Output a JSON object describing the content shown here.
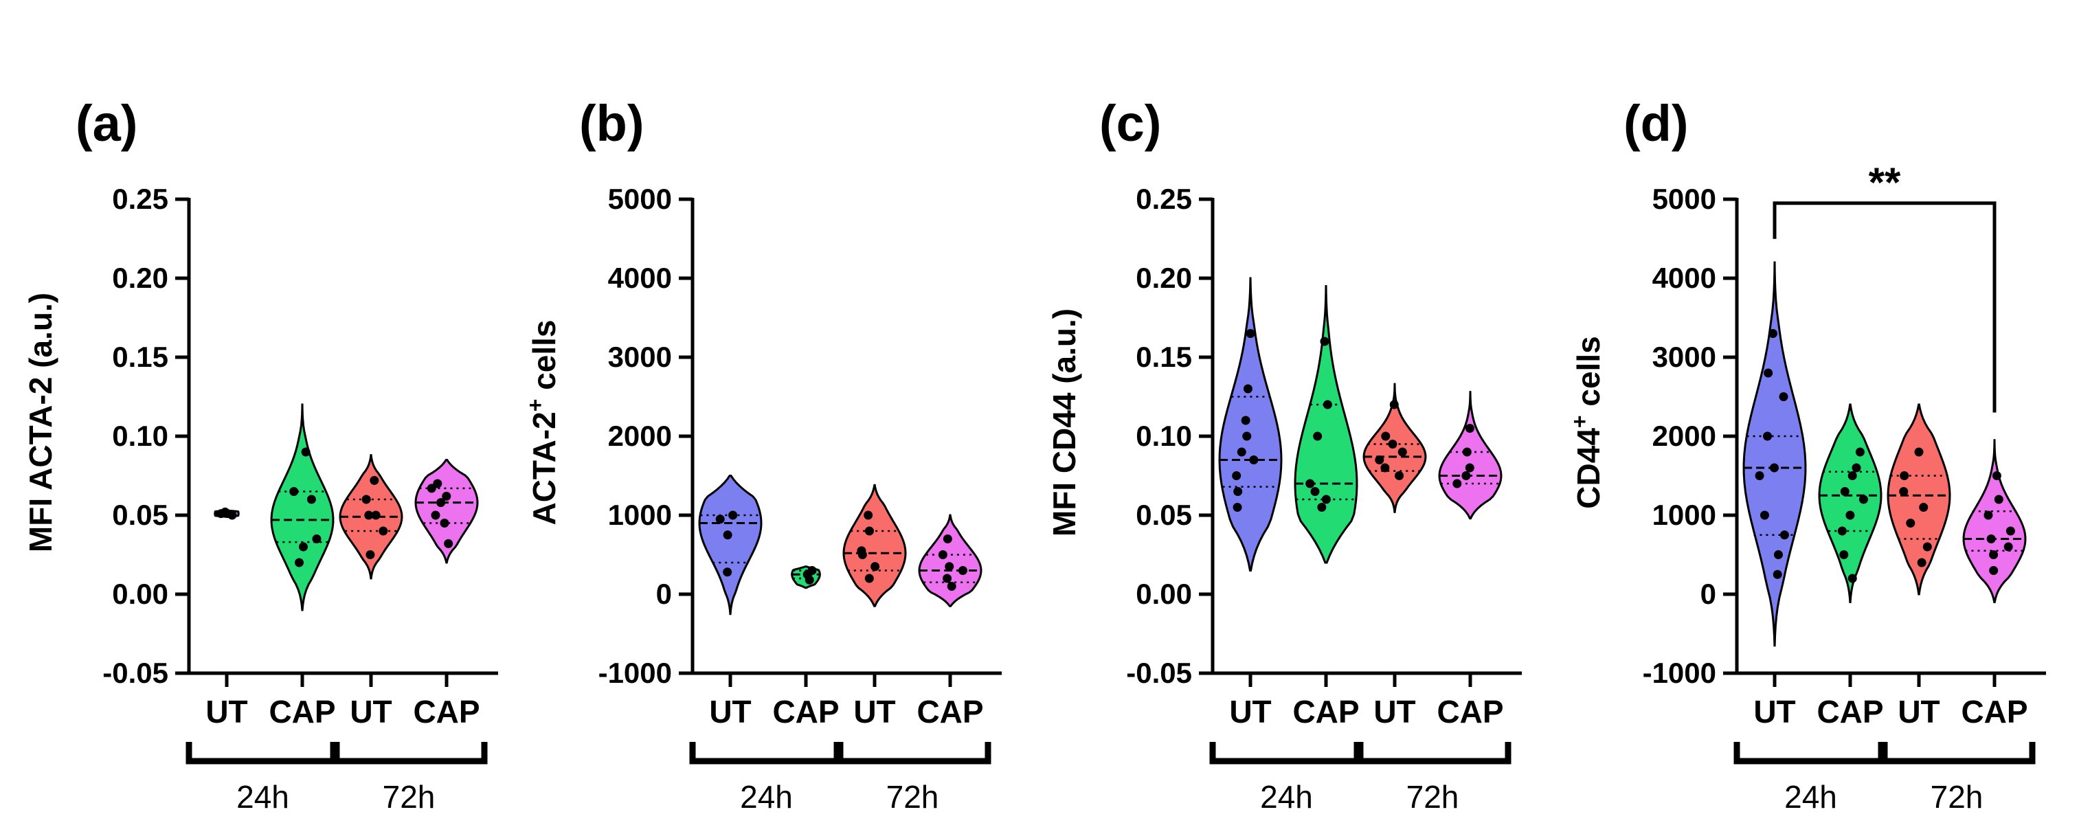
{
  "figure": {
    "panel_colors": [
      "#7b7fef",
      "#22dc73",
      "#f86d69",
      "#ec72ef"
    ]
  },
  "chart_data": [
    {
      "type": "violin",
      "panel": "(a)",
      "ylabel": "MFI ACTA-2 (a.u.)",
      "ylabel_sup": "",
      "ylabel_tail": "",
      "ylim": [
        -0.05,
        0.25
      ],
      "yticks": [
        -0.05,
        0.0,
        0.05,
        0.1,
        0.15,
        0.2,
        0.25
      ],
      "ytick_labels": [
        "-0.05",
        "0.00",
        "0.05",
        "0.10",
        "0.15",
        "0.20",
        "0.25"
      ],
      "categories": [
        "UT",
        "CAP",
        "UT",
        "CAP"
      ],
      "time_groups": [
        "24h",
        "72h"
      ],
      "series": [
        {
          "category": "UT",
          "group": "24h",
          "median": 0.051,
          "q1": 0.05,
          "q3": 0.052,
          "min": 0.049,
          "max": 0.053,
          "points": [
            0.05,
            0.051,
            0.051,
            0.052
          ]
        },
        {
          "category": "CAP",
          "group": "24h",
          "median": 0.047,
          "q1": 0.033,
          "q3": 0.065,
          "min": -0.01,
          "max": 0.12,
          "points": [
            0.02,
            0.03,
            0.035,
            0.06,
            0.065,
            0.09
          ]
        },
        {
          "category": "UT",
          "group": "72h",
          "median": 0.049,
          "q1": 0.04,
          "q3": 0.06,
          "min": 0.01,
          "max": 0.088,
          "points": [
            0.025,
            0.04,
            0.05,
            0.05,
            0.06,
            0.072
          ]
        },
        {
          "category": "CAP",
          "group": "72h",
          "median": 0.058,
          "q1": 0.045,
          "q3": 0.067,
          "min": 0.02,
          "max": 0.085,
          "points": [
            0.032,
            0.045,
            0.05,
            0.058,
            0.062,
            0.067,
            0.07
          ]
        }
      ],
      "significance": null
    },
    {
      "type": "violin",
      "panel": "(b)",
      "ylabel": "ACTA-2",
      "ylabel_sup": "+",
      "ylabel_tail": " cells",
      "ylim": [
        -1000,
        5000
      ],
      "yticks": [
        -1000,
        0,
        1000,
        2000,
        3000,
        4000,
        5000
      ],
      "ytick_labels": [
        "-1000",
        "0",
        "1000",
        "2000",
        "3000",
        "4000",
        "5000"
      ],
      "categories": [
        "UT",
        "CAP",
        "UT",
        "CAP"
      ],
      "time_groups": [
        "24h",
        "72h"
      ],
      "series": [
        {
          "category": "UT",
          "group": "24h",
          "median": 900,
          "q1": 400,
          "q3": 1000,
          "min": -250,
          "max": 1500,
          "points": [
            280,
            750,
            950,
            1000
          ]
        },
        {
          "category": "CAP",
          "group": "24h",
          "median": 250,
          "q1": 200,
          "q3": 300,
          "min": 80,
          "max": 350,
          "points": [
            180,
            250,
            300
          ]
        },
        {
          "category": "UT",
          "group": "72h",
          "median": 520,
          "q1": 300,
          "q3": 800,
          "min": -150,
          "max": 1380,
          "points": [
            200,
            350,
            500,
            550,
            800,
            1000
          ]
        },
        {
          "category": "CAP",
          "group": "72h",
          "median": 300,
          "q1": 150,
          "q3": 500,
          "min": -150,
          "max": 1000,
          "points": [
            100,
            200,
            300,
            350,
            500,
            700
          ]
        }
      ],
      "significance": null
    },
    {
      "type": "violin",
      "panel": "(c)",
      "ylabel": "MFI CD44 (a.u.)",
      "ylabel_sup": "",
      "ylabel_tail": "",
      "ylim": [
        -0.05,
        0.25
      ],
      "yticks": [
        -0.05,
        0.0,
        0.05,
        0.1,
        0.15,
        0.2,
        0.25
      ],
      "ytick_labels": [
        "-0.05",
        "0.00",
        "0.05",
        "0.10",
        "0.15",
        "0.20",
        "0.25"
      ],
      "categories": [
        "UT",
        "CAP",
        "UT",
        "CAP"
      ],
      "time_groups": [
        "24h",
        "72h"
      ],
      "series": [
        {
          "category": "UT",
          "group": "24h",
          "median": 0.085,
          "q1": 0.068,
          "q3": 0.125,
          "min": 0.015,
          "max": 0.2,
          "points": [
            0.055,
            0.065,
            0.075,
            0.085,
            0.09,
            0.1,
            0.11,
            0.13,
            0.165
          ]
        },
        {
          "category": "CAP",
          "group": "24h",
          "median": 0.07,
          "q1": 0.06,
          "q3": 0.12,
          "min": 0.02,
          "max": 0.195,
          "points": [
            0.055,
            0.06,
            0.065,
            0.07,
            0.1,
            0.12,
            0.16
          ]
        },
        {
          "category": "UT",
          "group": "72h",
          "median": 0.087,
          "q1": 0.078,
          "q3": 0.095,
          "min": 0.052,
          "max": 0.133,
          "points": [
            0.075,
            0.08,
            0.085,
            0.09,
            0.095,
            0.1,
            0.12
          ]
        },
        {
          "category": "CAP",
          "group": "72h",
          "median": 0.075,
          "q1": 0.07,
          "q3": 0.09,
          "min": 0.048,
          "max": 0.128,
          "points": [
            0.07,
            0.075,
            0.08,
            0.09,
            0.105
          ]
        }
      ],
      "significance": null
    },
    {
      "type": "violin",
      "panel": "(d)",
      "ylabel": "CD44",
      "ylabel_sup": "+",
      "ylabel_tail": " cells",
      "ylim": [
        -1000,
        5000
      ],
      "yticks": [
        -1000,
        0,
        1000,
        2000,
        3000,
        4000,
        5000
      ],
      "ytick_labels": [
        "-1000",
        "0",
        "1000",
        "2000",
        "3000",
        "4000",
        "5000"
      ],
      "categories": [
        "UT",
        "CAP",
        "UT",
        "CAP"
      ],
      "time_groups": [
        "24h",
        "72h"
      ],
      "series": [
        {
          "category": "UT",
          "group": "24h",
          "median": 1600,
          "q1": 750,
          "q3": 2000,
          "min": -650,
          "max": 4200,
          "points": [
            250,
            500,
            750,
            1000,
            1500,
            1600,
            2000,
            2500,
            2800,
            3300
          ]
        },
        {
          "category": "CAP",
          "group": "24h",
          "median": 1250,
          "q1": 800,
          "q3": 1550,
          "min": -100,
          "max": 2400,
          "points": [
            200,
            500,
            800,
            1000,
            1200,
            1300,
            1500,
            1600,
            1800
          ]
        },
        {
          "category": "UT",
          "group": "72h",
          "median": 1250,
          "q1": 700,
          "q3": 1500,
          "min": 0,
          "max": 2400,
          "points": [
            400,
            600,
            900,
            1100,
            1300,
            1500,
            1800
          ]
        },
        {
          "category": "CAP",
          "group": "72h",
          "median": 700,
          "q1": 550,
          "q3": 1050,
          "min": -100,
          "max": 1950,
          "points": [
            300,
            500,
            600,
            700,
            800,
            1000,
            1200,
            1500
          ]
        }
      ],
      "significance": {
        "from": 0,
        "to": 3,
        "label": "**",
        "y_value": 4950
      }
    }
  ]
}
